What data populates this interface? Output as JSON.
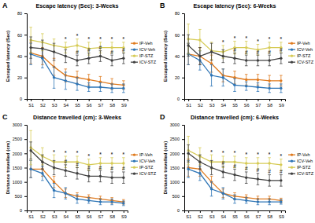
{
  "chart_data": [
    {
      "type": "line",
      "panel": "A",
      "title": "Escape latency (Sec): 3-Weeks",
      "y_label": "Escaped latency (Sec)",
      "categories": [
        "S1",
        "S2",
        "S3",
        "S4",
        "S5",
        "S6",
        "S7",
        "S8",
        "S9"
      ],
      "ylim": [
        0,
        80
      ],
      "yticks": [
        0,
        20,
        40,
        60,
        80
      ],
      "grid": false,
      "legend": "right",
      "marker": "circle",
      "series": [
        {
          "name": "IP-Veh",
          "color": "#e07b1f",
          "values": [
            43,
            40,
            30,
            22,
            20,
            18,
            16,
            14,
            13
          ],
          "errors": [
            10,
            8,
            8,
            6,
            6,
            5,
            5,
            5,
            4
          ],
          "significance": [
            null,
            null,
            null,
            null,
            null,
            null,
            null,
            null,
            null
          ]
        },
        {
          "name": "ICV-Veh",
          "color": "#2e75b6",
          "values": [
            42,
            38,
            20,
            17,
            14,
            11,
            11,
            10,
            10
          ],
          "errors": [
            10,
            9,
            10,
            8,
            6,
            4,
            4,
            4,
            4
          ],
          "significance": [
            null,
            null,
            null,
            null,
            null,
            null,
            null,
            null,
            null
          ]
        },
        {
          "name": "IP-STZ",
          "color": "#d6cb55",
          "values": [
            55,
            53,
            50,
            48,
            50,
            47,
            48,
            48,
            48
          ],
          "errors": [
            12,
            8,
            6,
            5,
            6,
            6,
            5,
            5,
            5
          ],
          "significance": [
            null,
            null,
            null,
            "*",
            "*",
            "*",
            "*",
            "*",
            "*"
          ]
        },
        {
          "name": "ICV-STZ",
          "color": "#404040",
          "values": [
            48,
            47,
            44,
            40,
            36,
            38,
            40,
            36,
            38
          ],
          "errors": [
            10,
            8,
            8,
            6,
            5,
            5,
            5,
            5,
            5
          ],
          "significance": [
            null,
            null,
            null,
            null,
            "#",
            "#",
            "#",
            "#",
            "#"
          ]
        }
      ]
    },
    {
      "type": "line",
      "panel": "B",
      "title": "Escape latency (Sec): 6-Weeks",
      "y_label": "Escaped latency (Sec)",
      "categories": [
        "S1",
        "S2",
        "S3",
        "S4",
        "S5",
        "S6",
        "S7",
        "S8",
        "S9"
      ],
      "ylim": [
        0,
        80
      ],
      "yticks": [
        0,
        20,
        40,
        60,
        80
      ],
      "grid": false,
      "legend": "right",
      "marker": "circle",
      "series": [
        {
          "name": "IP-Veh",
          "color": "#e07b1f",
          "values": [
            42,
            40,
            33,
            22,
            20,
            18,
            18,
            17,
            17
          ],
          "errors": [
            10,
            8,
            8,
            6,
            6,
            5,
            5,
            5,
            5
          ],
          "significance": [
            null,
            null,
            null,
            null,
            null,
            null,
            null,
            null,
            null
          ]
        },
        {
          "name": "ICV-Veh",
          "color": "#2e75b6",
          "values": [
            42,
            36,
            22,
            20,
            13,
            12,
            11,
            10,
            10
          ],
          "errors": [
            10,
            9,
            10,
            8,
            6,
            4,
            4,
            4,
            4
          ],
          "significance": [
            null,
            null,
            null,
            null,
            null,
            null,
            null,
            null,
            null
          ]
        },
        {
          "name": "IP-STZ",
          "color": "#d6cb55",
          "values": [
            56,
            55,
            45,
            44,
            48,
            48,
            46,
            48,
            48
          ],
          "errors": [
            14,
            10,
            8,
            6,
            6,
            6,
            5,
            5,
            5
          ],
          "significance": [
            null,
            null,
            null,
            "*",
            "*",
            "*",
            "*",
            "*",
            "*"
          ]
        },
        {
          "name": "ICV-STZ",
          "color": "#404040",
          "values": [
            50,
            40,
            44,
            40,
            38,
            36,
            36,
            36,
            38
          ],
          "errors": [
            10,
            8,
            8,
            6,
            5,
            5,
            5,
            5,
            5
          ],
          "significance": [
            null,
            null,
            null,
            null,
            "#",
            "#",
            "#",
            "#",
            "#"
          ]
        }
      ]
    },
    {
      "type": "line",
      "panel": "C",
      "title": "Distance travelled (cm): 3-Weeks",
      "y_label": "Distance travelled (cm)",
      "categories": [
        "S1",
        "S2",
        "S3",
        "S4",
        "S5",
        "S6",
        "S7",
        "S8",
        "S9"
      ],
      "ylim": [
        0,
        3000
      ],
      "yticks": [
        0,
        500,
        1000,
        1500,
        2000,
        2500,
        3000
      ],
      "grid": false,
      "legend": "right",
      "marker": "circle",
      "series": [
        {
          "name": "IP-Veh",
          "color": "#e07b1f",
          "values": [
            1450,
            1450,
            1000,
            600,
            500,
            450,
            400,
            350,
            300
          ],
          "errors": [
            300,
            250,
            200,
            150,
            120,
            100,
            100,
            100,
            80
          ],
          "significance": [
            null,
            null,
            null,
            null,
            null,
            null,
            null,
            null,
            null
          ]
        },
        {
          "name": "ICV-Veh",
          "color": "#2e75b6",
          "values": [
            1450,
            1300,
            700,
            600,
            400,
            350,
            300,
            300,
            250
          ],
          "errors": [
            300,
            250,
            250,
            200,
            150,
            100,
            100,
            100,
            80
          ],
          "significance": [
            null,
            null,
            null,
            null,
            null,
            null,
            null,
            null,
            null
          ]
        },
        {
          "name": "IP-STZ",
          "color": "#d6cb55",
          "values": [
            2200,
            1900,
            1700,
            1700,
            1700,
            1600,
            1650,
            1650,
            1650
          ],
          "errors": [
            600,
            300,
            250,
            200,
            200,
            200,
            200,
            200,
            200
          ],
          "significance": [
            null,
            null,
            "*",
            "*",
            "*",
            "*",
            "*",
            "*",
            "*"
          ]
        },
        {
          "name": "ICV-STZ",
          "color": "#404040",
          "values": [
            2100,
            1700,
            1500,
            1400,
            1300,
            1200,
            1200,
            1150,
            1150
          ],
          "errors": [
            300,
            250,
            250,
            200,
            200,
            200,
            200,
            200,
            200
          ],
          "significance": [
            null,
            null,
            null,
            "#",
            "#",
            "#",
            "#",
            "#",
            "#"
          ]
        }
      ]
    },
    {
      "type": "line",
      "panel": "D",
      "title": "Distance travelled (cm): 6-Weeks",
      "y_label": "Distance travelled (cm)",
      "categories": [
        "S1",
        "S2",
        "S3",
        "S4",
        "S5",
        "S6",
        "S7",
        "S8",
        "S9"
      ],
      "ylim": [
        0,
        3000
      ],
      "yticks": [
        0,
        500,
        1000,
        1500,
        2000,
        2500,
        3000
      ],
      "grid": false,
      "legend": "right",
      "marker": "circle",
      "series": [
        {
          "name": "IP-Veh",
          "color": "#e07b1f",
          "values": [
            1500,
            1450,
            1000,
            600,
            500,
            450,
            400,
            400,
            350
          ],
          "errors": [
            300,
            250,
            200,
            150,
            120,
            100,
            100,
            100,
            80
          ],
          "significance": [
            null,
            null,
            null,
            null,
            null,
            null,
            null,
            null,
            null
          ]
        },
        {
          "name": "ICV-Veh",
          "color": "#2e75b6",
          "values": [
            1450,
            1300,
            750,
            600,
            400,
            350,
            300,
            300,
            300
          ],
          "errors": [
            300,
            250,
            250,
            200,
            150,
            100,
            100,
            100,
            80
          ],
          "significance": [
            null,
            null,
            null,
            null,
            null,
            null,
            null,
            null,
            null
          ]
        },
        {
          "name": "IP-STZ",
          "color": "#d6cb55",
          "values": [
            2100,
            1900,
            1700,
            1700,
            1700,
            1650,
            1650,
            1650,
            1600
          ],
          "errors": [
            500,
            300,
            250,
            200,
            200,
            200,
            200,
            200,
            200
          ],
          "significance": [
            null,
            null,
            "*",
            "*",
            "*",
            "*",
            "*",
            "*",
            "*"
          ]
        },
        {
          "name": "ICV-STZ",
          "color": "#404040",
          "values": [
            2000,
            1700,
            1500,
            1350,
            1250,
            1150,
            1100,
            1050,
            1050
          ],
          "errors": [
            300,
            250,
            250,
            200,
            200,
            200,
            200,
            200,
            200
          ],
          "significance": [
            null,
            null,
            null,
            "#",
            "#",
            "#",
            "#",
            "#",
            "#"
          ]
        }
      ]
    }
  ]
}
